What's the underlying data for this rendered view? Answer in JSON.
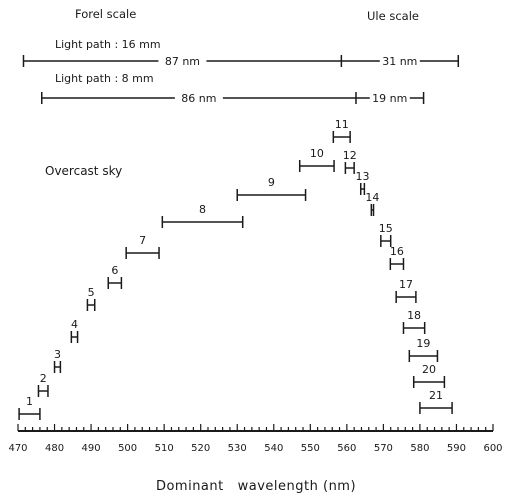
{
  "chart_data": {
    "type": "range-bar",
    "xlabel": "Dominant   wavelength (nm)",
    "xlim": [
      470,
      600
    ],
    "x_ticks": [
      470,
      480,
      490,
      500,
      510,
      520,
      530,
      540,
      550,
      560,
      570,
      580,
      590,
      600
    ],
    "annotation": "Overcast sky",
    "scale_headers": {
      "forel": "Forel scale",
      "ule": "Ule scale"
    },
    "light_paths": [
      {
        "label": "Light path : 16 mm",
        "start": 471.5,
        "split": 558.5,
        "end": 590.5,
        "forel_span": "87 nm",
        "ule_span": "31 nm"
      },
      {
        "label": "Light path : 8 mm",
        "start": 476.5,
        "split": 562.5,
        "end": 581.0,
        "forel_span": "86 nm",
        "ule_span": "19 nm"
      }
    ],
    "ranges": [
      {
        "label": "1",
        "x0": 470.3,
        "x1": 476.0
      },
      {
        "label": "2",
        "x0": 475.6,
        "x1": 478.2
      },
      {
        "label": "3",
        "x0": 480.0,
        "x1": 481.6
      },
      {
        "label": "4",
        "x0": 484.6,
        "x1": 486.3
      },
      {
        "label": "5",
        "x0": 489.0,
        "x1": 491.0
      },
      {
        "label": "6",
        "x0": 494.7,
        "x1": 498.3
      },
      {
        "label": "7",
        "x0": 499.6,
        "x1": 508.6
      },
      {
        "label": "8",
        "x0": 509.5,
        "x1": 531.5
      },
      {
        "label": "9",
        "x0": 530.0,
        "x1": 548.7
      },
      {
        "label": "10",
        "x0": 547.1,
        "x1": 556.5
      },
      {
        "label": "11",
        "x0": 556.3,
        "x1": 560.9
      },
      {
        "label": "12",
        "x0": 559.6,
        "x1": 562.0
      },
      {
        "label": "13",
        "x0": 563.8,
        "x1": 564.8
      },
      {
        "label": "14",
        "x0": 566.7,
        "x1": 567.3
      },
      {
        "label": "15",
        "x0": 569.3,
        "x1": 572.0
      },
      {
        "label": "16",
        "x0": 571.9,
        "x1": 575.5
      },
      {
        "label": "17",
        "x0": 573.5,
        "x1": 578.9
      },
      {
        "label": "18",
        "x0": 575.5,
        "x1": 581.3
      },
      {
        "label": "19",
        "x0": 577.1,
        "x1": 584.8
      },
      {
        "label": "20",
        "x0": 578.3,
        "x1": 586.7
      },
      {
        "label": "21",
        "x0": 580.0,
        "x1": 588.8
      }
    ]
  }
}
